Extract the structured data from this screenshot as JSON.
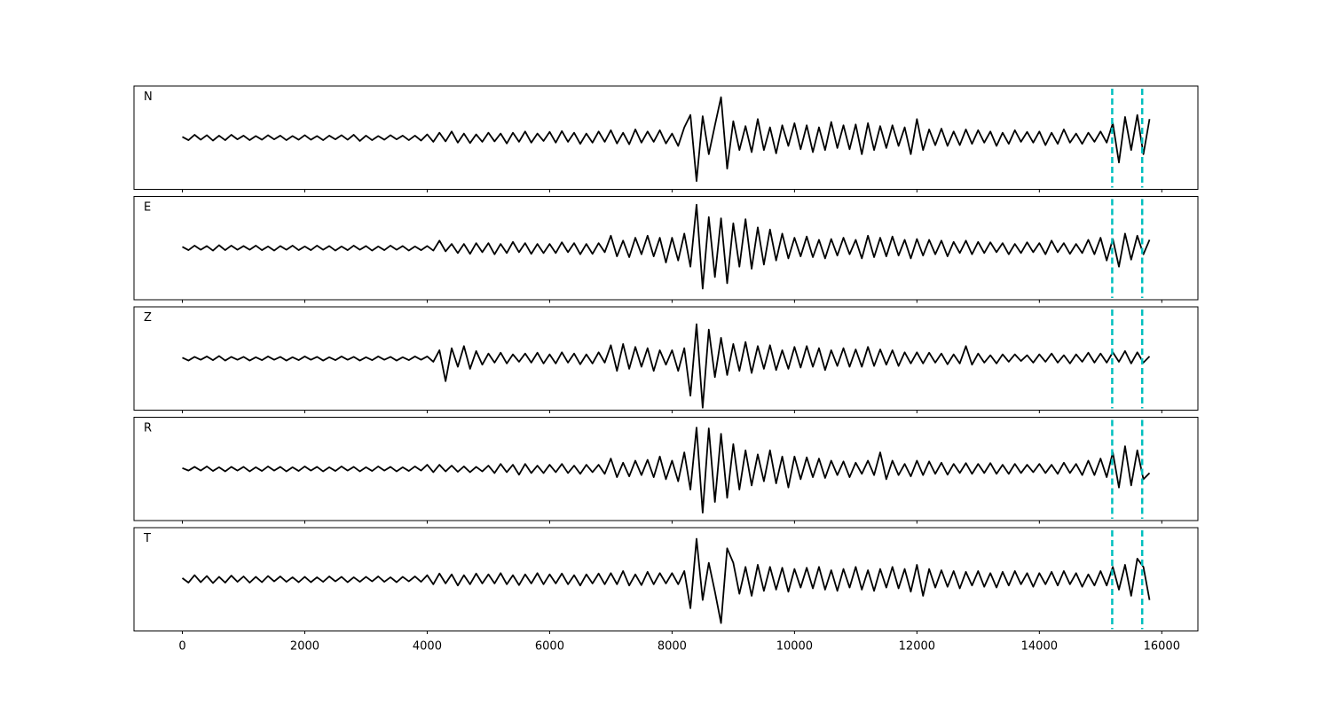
{
  "chart_data": {
    "type": "line",
    "x": [
      0,
      100,
      200,
      300,
      400,
      500,
      600,
      700,
      800,
      900,
      1000,
      1100,
      1200,
      1300,
      1400,
      1500,
      1600,
      1700,
      1800,
      1900,
      2000,
      2100,
      2200,
      2300,
      2400,
      2500,
      2600,
      2700,
      2800,
      2900,
      3000,
      3100,
      3200,
      3300,
      3400,
      3500,
      3600,
      3700,
      3800,
      3900,
      4000,
      4100,
      4200,
      4300,
      4400,
      4500,
      4600,
      4700,
      4800,
      4900,
      5000,
      5100,
      5200,
      5300,
      5400,
      5500,
      5600,
      5700,
      5800,
      5900,
      6000,
      6100,
      6200,
      6300,
      6400,
      6500,
      6600,
      6700,
      6800,
      6900,
      7000,
      7100,
      7200,
      7300,
      7400,
      7500,
      7600,
      7700,
      7800,
      7900,
      8000,
      8100,
      8200,
      8300,
      8400,
      8500,
      8600,
      8700,
      8800,
      8900,
      9000,
      9100,
      9200,
      9300,
      9400,
      9500,
      9600,
      9700,
      9800,
      9900,
      10000,
      10100,
      10200,
      10300,
      10400,
      10500,
      10600,
      10700,
      10800,
      10900,
      11000,
      11100,
      11200,
      11300,
      11400,
      11500,
      11600,
      11700,
      11800,
      11900,
      12000,
      12100,
      12200,
      12300,
      12400,
      12500,
      12600,
      12700,
      12800,
      12900,
      13000,
      13100,
      13200,
      13300,
      13400,
      13500,
      13600,
      13700,
      13800,
      13900,
      14000,
      14100,
      14200,
      14300,
      14400,
      14500,
      14600,
      14700,
      14800,
      14900,
      15000,
      15100,
      15200,
      15300,
      15400,
      15500,
      15600,
      15700,
      15800
    ],
    "xlim": [
      -790,
      16590
    ],
    "xticks": [
      0,
      2000,
      4000,
      6000,
      8000,
      10000,
      12000,
      14000,
      16000
    ],
    "ylim": [
      -1.25,
      1.25
    ],
    "series": [
      {
        "name": "N",
        "color": "#000000",
        "values": [
          0.02,
          -0.06,
          0.07,
          -0.05,
          0.06,
          -0.07,
          0.05,
          -0.06,
          0.07,
          -0.04,
          0.05,
          -0.06,
          0.04,
          -0.05,
          0.06,
          -0.04,
          0.05,
          -0.06,
          0.04,
          -0.05,
          0.06,
          -0.05,
          0.04,
          -0.06,
          0.05,
          -0.04,
          0.06,
          -0.05,
          0.07,
          -0.08,
          0.05,
          -0.06,
          0.04,
          -0.05,
          0.06,
          -0.04,
          0.05,
          -0.06,
          0.05,
          -0.07,
          0.08,
          -0.1,
          0.12,
          -0.09,
          0.15,
          -0.12,
          0.1,
          -0.13,
          0.08,
          -0.1,
          0.12,
          -0.09,
          0.1,
          -0.14,
          0.12,
          -0.1,
          0.15,
          -0.12,
          0.1,
          -0.08,
          0.14,
          -0.12,
          0.16,
          -0.1,
          0.12,
          -0.15,
          0.1,
          -0.12,
          0.15,
          -0.1,
          0.18,
          -0.14,
          0.12,
          -0.16,
          0.2,
          -0.12,
          0.15,
          -0.1,
          0.18,
          -0.14,
          0.1,
          -0.2,
          0.25,
          0.55,
          -1.05,
          0.52,
          -0.4,
          0.3,
          0.98,
          -0.75,
          0.4,
          -0.3,
          0.28,
          -0.35,
          0.45,
          -0.3,
          0.25,
          -0.38,
          0.3,
          -0.2,
          0.35,
          -0.28,
          0.3,
          -0.35,
          0.25,
          -0.3,
          0.38,
          -0.25,
          0.3,
          -0.28,
          0.32,
          -0.4,
          0.35,
          -0.3,
          0.28,
          -0.25,
          0.3,
          -0.2,
          0.25,
          -0.4,
          0.45,
          -0.3,
          0.2,
          -0.18,
          0.22,
          -0.2,
          0.15,
          -0.18,
          0.2,
          -0.15,
          0.18,
          -0.12,
          0.15,
          -0.2,
          0.12,
          -0.15,
          0.18,
          -0.1,
          0.14,
          -0.12,
          0.15,
          -0.18,
          0.12,
          -0.15,
          0.2,
          -0.12,
          0.1,
          -0.15,
          0.12,
          -0.1,
          0.15,
          -0.12,
          0.35,
          -0.6,
          0.5,
          -0.3,
          0.55,
          -0.4,
          0.45
        ]
      },
      {
        "name": "E",
        "color": "#000000",
        "values": [
          0.03,
          -0.05,
          0.06,
          -0.04,
          0.05,
          -0.06,
          0.07,
          -0.05,
          0.06,
          -0.04,
          0.05,
          -0.04,
          0.06,
          -0.05,
          0.04,
          -0.06,
          0.05,
          -0.04,
          0.06,
          -0.05,
          0.04,
          -0.05,
          0.06,
          -0.04,
          0.05,
          -0.06,
          0.04,
          -0.05,
          0.06,
          -0.04,
          0.05,
          -0.06,
          0.04,
          -0.05,
          0.06,
          -0.04,
          0.05,
          -0.06,
          0.04,
          -0.05,
          0.05,
          -0.06,
          0.18,
          -0.08,
          0.1,
          -0.12,
          0.1,
          -0.14,
          0.12,
          -0.1,
          0.12,
          -0.15,
          0.1,
          -0.12,
          0.15,
          -0.1,
          0.12,
          -0.14,
          0.1,
          -0.12,
          0.1,
          -0.12,
          0.14,
          -0.1,
          0.12,
          -0.15,
          0.1,
          -0.14,
          0.12,
          -0.1,
          0.3,
          -0.2,
          0.18,
          -0.22,
          0.25,
          -0.15,
          0.3,
          -0.2,
          0.25,
          -0.35,
          0.25,
          -0.3,
          0.35,
          -0.45,
          1.05,
          -0.98,
          0.75,
          -0.7,
          0.72,
          -0.85,
          0.6,
          -0.45,
          0.7,
          -0.5,
          0.5,
          -0.4,
          0.45,
          -0.3,
          0.35,
          -0.25,
          0.25,
          -0.2,
          0.28,
          -0.22,
          0.2,
          -0.25,
          0.22,
          -0.18,
          0.25,
          -0.15,
          0.2,
          -0.25,
          0.3,
          -0.22,
          0.25,
          -0.2,
          0.28,
          -0.18,
          0.2,
          -0.25,
          0.22,
          -0.18,
          0.2,
          -0.15,
          0.18,
          -0.2,
          0.15,
          -0.12,
          0.18,
          -0.15,
          0.15,
          -0.12,
          0.14,
          -0.1,
          0.12,
          -0.15,
          0.1,
          -0.12,
          0.14,
          -0.1,
          0.12,
          -0.15,
          0.18,
          -0.1,
          0.12,
          -0.14,
          0.1,
          -0.12,
          0.2,
          -0.15,
          0.25,
          -0.3,
          0.22,
          -0.45,
          0.35,
          -0.28,
          0.3,
          -0.15,
          0.2
        ]
      },
      {
        "name": "Z",
        "color": "#000000",
        "values": [
          0.02,
          -0.05,
          0.04,
          -0.03,
          0.05,
          -0.04,
          0.06,
          -0.05,
          0.04,
          -0.03,
          0.04,
          -0.05,
          0.03,
          -0.04,
          0.05,
          -0.03,
          0.04,
          -0.05,
          0.03,
          -0.04,
          0.05,
          -0.03,
          0.04,
          -0.05,
          0.03,
          -0.04,
          0.05,
          -0.03,
          0.04,
          -0.05,
          0.03,
          -0.04,
          0.05,
          -0.03,
          0.04,
          -0.05,
          0.03,
          -0.04,
          0.05,
          -0.03,
          0.05,
          -0.08,
          0.2,
          -0.55,
          0.25,
          -0.2,
          0.3,
          -0.25,
          0.18,
          -0.15,
          0.12,
          -0.1,
          0.14,
          -0.12,
          0.1,
          -0.08,
          0.12,
          -0.1,
          0.14,
          -0.12,
          0.1,
          -0.12,
          0.15,
          -0.1,
          0.12,
          -0.14,
          0.1,
          -0.12,
          0.15,
          -0.1,
          0.32,
          -0.3,
          0.35,
          -0.25,
          0.28,
          -0.2,
          0.25,
          -0.3,
          0.2,
          -0.15,
          0.2,
          -0.3,
          0.25,
          -0.9,
          0.83,
          -1.19,
          0.7,
          -0.45,
          0.5,
          -0.4,
          0.35,
          -0.3,
          0.4,
          -0.35,
          0.3,
          -0.25,
          0.32,
          -0.28,
          0.2,
          -0.25,
          0.28,
          -0.22,
          0.3,
          -0.2,
          0.25,
          -0.28,
          0.2,
          -0.18,
          0.25,
          -0.2,
          0.22,
          -0.2,
          0.28,
          -0.18,
          0.22,
          -0.15,
          0.2,
          -0.18,
          0.15,
          -0.12,
          0.15,
          -0.12,
          0.14,
          -0.1,
          0.12,
          -0.14,
          0.1,
          -0.12,
          0.3,
          -0.15,
          0.12,
          -0.1,
          0.08,
          -0.12,
          0.1,
          -0.08,
          0.1,
          -0.06,
          0.08,
          -0.1,
          0.1,
          -0.08,
          0.12,
          -0.1,
          0.08,
          -0.12,
          0.1,
          -0.08,
          0.14,
          -0.1,
          0.12,
          -0.1,
          0.15,
          -0.08,
          0.18,
          -0.12,
          0.15,
          -0.1,
          0.05
        ]
      },
      {
        "name": "R",
        "color": "#000000",
        "values": [
          0.02,
          -0.04,
          0.05,
          -0.04,
          0.06,
          -0.05,
          0.04,
          -0.06,
          0.05,
          -0.04,
          0.05,
          -0.06,
          0.04,
          -0.05,
          0.06,
          -0.04,
          0.05,
          -0.06,
          0.04,
          -0.05,
          0.06,
          -0.04,
          0.05,
          -0.06,
          0.04,
          -0.05,
          0.06,
          -0.04,
          0.05,
          -0.06,
          0.04,
          -0.05,
          0.06,
          -0.04,
          0.05,
          -0.06,
          0.04,
          -0.05,
          0.06,
          -0.04,
          0.1,
          -0.08,
          0.1,
          -0.06,
          0.08,
          -0.07,
          0.06,
          -0.08,
          0.05,
          -0.06,
          0.08,
          -0.1,
          0.12,
          -0.08,
          0.1,
          -0.14,
          0.12,
          -0.1,
          0.08,
          -0.1,
          0.1,
          -0.08,
          0.12,
          -0.1,
          0.08,
          -0.12,
          0.1,
          -0.08,
          0.1,
          -0.12,
          0.25,
          -0.2,
          0.15,
          -0.18,
          0.2,
          -0.15,
          0.22,
          -0.2,
          0.3,
          -0.25,
          0.2,
          -0.3,
          0.4,
          -0.5,
          1.0,
          -1.06,
          0.98,
          -0.8,
          0.85,
          -0.7,
          0.6,
          -0.5,
          0.45,
          -0.4,
          0.35,
          -0.3,
          0.45,
          -0.35,
          0.3,
          -0.45,
          0.3,
          -0.25,
          0.28,
          -0.2,
          0.25,
          -0.22,
          0.2,
          -0.15,
          0.18,
          -0.2,
          0.15,
          -0.12,
          0.2,
          -0.15,
          0.4,
          -0.25,
          0.2,
          -0.15,
          0.12,
          -0.18,
          0.2,
          -0.15,
          0.18,
          -0.12,
          0.15,
          -0.14,
          0.12,
          -0.1,
          0.14,
          -0.12,
          0.12,
          -0.1,
          0.14,
          -0.12,
          0.1,
          -0.12,
          0.12,
          -0.1,
          0.1,
          -0.08,
          0.12,
          -0.1,
          0.1,
          -0.12,
          0.15,
          -0.1,
          0.12,
          -0.15,
          0.2,
          -0.15,
          0.25,
          -0.2,
          0.4,
          -0.45,
          0.55,
          -0.4,
          0.45,
          -0.25,
          -0.1
        ]
      },
      {
        "name": "T",
        "color": "#000000",
        "values": [
          0.03,
          -0.08,
          0.1,
          -0.07,
          0.08,
          -0.09,
          0.06,
          -0.08,
          0.09,
          -0.06,
          0.07,
          -0.08,
          0.06,
          -0.07,
          0.08,
          -0.05,
          0.07,
          -0.06,
          0.05,
          -0.07,
          0.06,
          -0.07,
          0.05,
          -0.06,
          0.07,
          -0.05,
          0.06,
          -0.07,
          0.05,
          -0.06,
          0.06,
          -0.05,
          0.07,
          -0.06,
          0.05,
          -0.07,
          0.06,
          -0.05,
          0.07,
          -0.06,
          0.1,
          -0.12,
          0.14,
          -0.1,
          0.12,
          -0.15,
          0.1,
          -0.12,
          0.14,
          -0.1,
          0.12,
          -0.1,
          0.15,
          -0.12,
          0.1,
          -0.14,
          0.12,
          -0.1,
          0.15,
          -0.12,
          0.12,
          -0.1,
          0.14,
          -0.12,
          0.1,
          -0.15,
          0.12,
          -0.1,
          0.14,
          -0.12,
          0.15,
          -0.12,
          0.2,
          -0.15,
          0.12,
          -0.14,
          0.18,
          -0.12,
          0.15,
          -0.1,
          0.15,
          -0.12,
          0.2,
          -0.7,
          0.98,
          -0.5,
          0.4,
          -0.3,
          -1.06,
          0.75,
          0.4,
          -0.35,
          0.3,
          -0.4,
          0.35,
          -0.28,
          0.3,
          -0.25,
          0.28,
          -0.3,
          0.25,
          -0.2,
          0.28,
          -0.22,
          0.3,
          -0.25,
          0.22,
          -0.28,
          0.25,
          -0.2,
          0.3,
          -0.25,
          0.22,
          -0.28,
          0.25,
          -0.2,
          0.3,
          -0.22,
          0.25,
          -0.3,
          0.35,
          -0.4,
          0.25,
          -0.2,
          0.22,
          -0.18,
          0.2,
          -0.22,
          0.18,
          -0.15,
          0.2,
          -0.18,
          0.15,
          -0.2,
          0.18,
          -0.15,
          0.2,
          -0.12,
          0.15,
          -0.18,
          0.15,
          -0.12,
          0.18,
          -0.15,
          0.2,
          -0.12,
          0.15,
          -0.18,
          0.12,
          -0.15,
          0.2,
          -0.15,
          0.3,
          -0.25,
          0.35,
          -0.4,
          0.5,
          0.3,
          -0.5
        ]
      }
    ],
    "vlines": {
      "x": [
        15190,
        15680
      ],
      "color": "#00bfbf",
      "style": "dashed"
    }
  }
}
